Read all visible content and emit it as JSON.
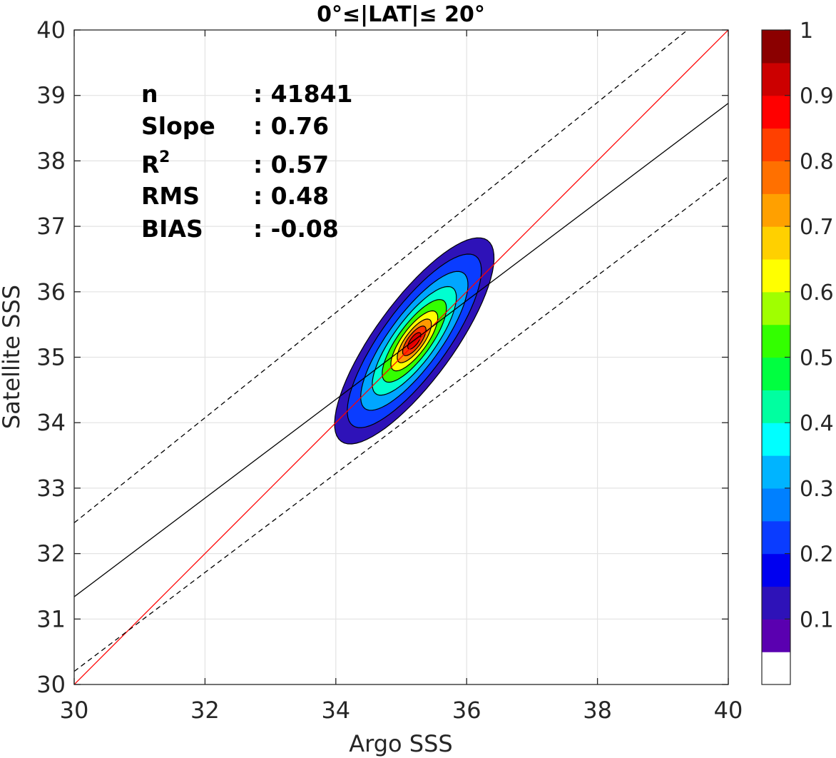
{
  "chart_data": {
    "type": "heatmap",
    "title": "0°≤|LAT|≤ 20°",
    "xlabel": "Argo SSS",
    "ylabel": "Satellite SSS",
    "xlim": [
      30,
      40
    ],
    "ylim": [
      30,
      40
    ],
    "xticks": [
      "30",
      "32",
      "34",
      "36",
      "38",
      "40"
    ],
    "yticks": [
      "30",
      "31",
      "32",
      "33",
      "34",
      "35",
      "36",
      "37",
      "38",
      "39",
      "40"
    ],
    "grid": true,
    "stats": [
      {
        "label": "n",
        "sup": "",
        "value": ": 41841"
      },
      {
        "label": "Slope",
        "sup": "",
        "value": ": 0.76"
      },
      {
        "label": "R",
        "sup": "2",
        "value": ": 0.57"
      },
      {
        "label": "RMS",
        "sup": "",
        "value": ": 0.48"
      },
      {
        "label": "BIAS",
        "sup": "",
        "value": ": -0.08"
      }
    ],
    "lines": [
      {
        "name": "one-to-one",
        "color": "#ff0000",
        "style": "solid",
        "points": [
          [
            30,
            30
          ],
          [
            40,
            40
          ]
        ]
      },
      {
        "name": "regression",
        "color": "#000000",
        "style": "solid",
        "points": [
          [
            30,
            31.34
          ],
          [
            40,
            38.88
          ]
        ]
      },
      {
        "name": "upper-bound",
        "color": "#000000",
        "style": "dashed",
        "points": [
          [
            30,
            32.47
          ],
          [
            40,
            40.5
          ]
        ]
      },
      {
        "name": "lower-bound",
        "color": "#000000",
        "style": "dashed",
        "points": [
          [
            30,
            30.2
          ],
          [
            40,
            37.76
          ]
        ]
      }
    ],
    "density_contours": {
      "center": [
        35.2,
        35.25
      ],
      "axis_direction": [
        0.59,
        0.81
      ],
      "levels": [
        {
          "level": 0.05,
          "color": "#2e12b8",
          "semi_major": 1.9,
          "semi_minor": 0.6
        },
        {
          "level": 0.15,
          "color": "#0a3cff",
          "semi_major": 1.6,
          "semi_minor": 0.5
        },
        {
          "level": 0.25,
          "color": "#00a6ff",
          "semi_major": 1.28,
          "semi_minor": 0.4
        },
        {
          "level": 0.35,
          "color": "#00ffd0",
          "semi_major": 1.0,
          "semi_minor": 0.32
        },
        {
          "level": 0.5,
          "color": "#33ff00",
          "semi_major": 0.76,
          "semi_minor": 0.25
        },
        {
          "level": 0.65,
          "color": "#ffff00",
          "semi_major": 0.55,
          "semi_minor": 0.19
        },
        {
          "level": 0.75,
          "color": "#ff9900",
          "semi_major": 0.4,
          "semi_minor": 0.14
        },
        {
          "level": 0.85,
          "color": "#ff3300",
          "semi_major": 0.27,
          "semi_minor": 0.1
        },
        {
          "level": 0.95,
          "color": "#dd0000",
          "semi_major": 0.15,
          "semi_minor": 0.06
        }
      ]
    },
    "colorbar": {
      "range": [
        0,
        1
      ],
      "ticks": [
        "0.1",
        "0.2",
        "0.3",
        "0.4",
        "0.5",
        "0.6",
        "0.7",
        "0.8",
        "0.9",
        "1"
      ],
      "colors": [
        "#ffffff",
        "#5a00b0",
        "#2e12b8",
        "#0000f0",
        "#0a3cff",
        "#0080ff",
        "#00b4ff",
        "#00ffff",
        "#00ffa0",
        "#00ff40",
        "#33ff00",
        "#a0ff00",
        "#ffff00",
        "#ffd000",
        "#ffa000",
        "#ff7000",
        "#ff4000",
        "#ff0000",
        "#cc0000",
        "#8b0000"
      ]
    }
  }
}
